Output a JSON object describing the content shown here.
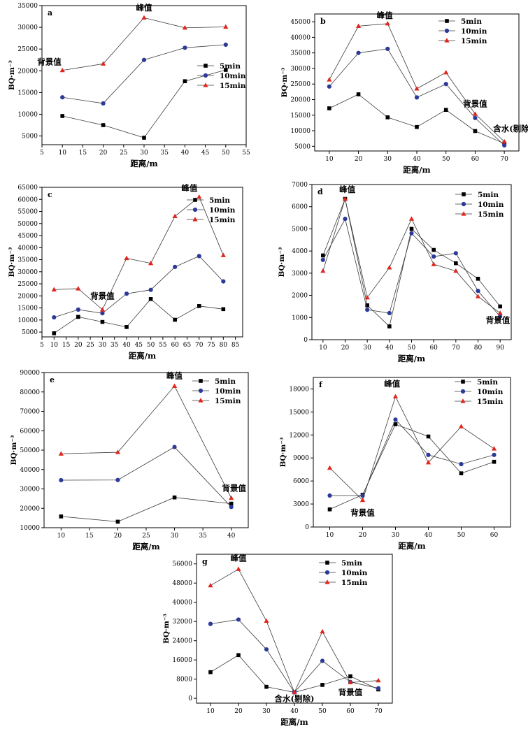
{
  "figure": {
    "charts": [
      {
        "panel_label": "a",
        "type": "line",
        "ylabel": "BQ·m⁻³",
        "xlabel": "距离/m",
        "x": [
          10,
          20,
          30,
          40,
          50
        ],
        "xlim": [
          5,
          55
        ],
        "xticks": [
          5,
          10,
          15,
          20,
          25,
          30,
          35,
          40,
          45,
          50,
          55
        ],
        "ylim": [
          3000,
          35000
        ],
        "yticks": [
          5000,
          10000,
          15000,
          20000,
          25000,
          30000,
          35000
        ],
        "legend_position": "right-middle",
        "series": [
          {
            "name": "5min",
            "marker": "square",
            "color": "#000000",
            "values": [
              9600,
              7500,
              4600,
              17600,
              20200
            ]
          },
          {
            "name": "10min",
            "marker": "circle",
            "color": "#2b3a98",
            "values": [
              13900,
              12500,
              22500,
              25300,
              26000
            ]
          },
          {
            "name": "15min",
            "marker": "triangle",
            "color": "#e0261d",
            "values": [
              20100,
              21600,
              32200,
              29900,
              30100
            ]
          }
        ],
        "annotations": [
          {
            "text": "峰值",
            "x": 30,
            "y": 33900
          },
          {
            "text": "背景值",
            "x": 6.8,
            "y": 21400
          }
        ]
      },
      {
        "panel_label": "b",
        "type": "line",
        "ylabel": "BQ·m⁻³",
        "xlabel": "距离/m",
        "x": [
          10,
          20,
          30,
          40,
          50,
          60,
          70
        ],
        "xlim": [
          5,
          75
        ],
        "xticks": [
          10,
          20,
          30,
          40,
          50,
          60,
          70
        ],
        "ylim": [
          3500,
          47500
        ],
        "yticks": [
          5000,
          10000,
          15000,
          20000,
          25000,
          30000,
          35000,
          40000,
          45000
        ],
        "legend_position": "top-right",
        "series": [
          {
            "name": "5min",
            "marker": "square",
            "color": "#000000",
            "values": [
              17200,
              21700,
              14300,
              11200,
              16700,
              9900,
              5900
            ]
          },
          {
            "name": "10min",
            "marker": "circle",
            "color": "#2b3a98",
            "values": [
              24200,
              35000,
              36300,
              20700,
              25000,
              14100,
              5300
            ]
          },
          {
            "name": "15min",
            "marker": "triangle",
            "color": "#e0261d",
            "values": [
              26400,
              43600,
              44400,
              23500,
              28700,
              15400,
              6500
            ]
          }
        ],
        "annotations": [
          {
            "text": "峰值",
            "x": 29,
            "y": 46100
          },
          {
            "text": "背景值",
            "x": 60,
            "y": 17800
          },
          {
            "text": "含水(剔除)",
            "x": 73,
            "y": 9800
          }
        ]
      },
      {
        "panel_label": "c",
        "type": "line",
        "ylabel": "BQ·m⁻³",
        "xlabel": "距离/m",
        "x": [
          10,
          20,
          30,
          40,
          50,
          60,
          70,
          80
        ],
        "xlim": [
          5,
          88
        ],
        "xticks": [
          5,
          10,
          15,
          20,
          25,
          30,
          35,
          40,
          45,
          50,
          55,
          60,
          65,
          70,
          75,
          80,
          85
        ],
        "ylim": [
          3000,
          65000
        ],
        "yticks": [
          5000,
          10000,
          15000,
          20000,
          25000,
          30000,
          35000,
          40000,
          45000,
          50000,
          55000,
          60000,
          65000
        ],
        "legend_position": "top-right",
        "series": [
          {
            "name": "5min",
            "marker": "square",
            "color": "#000000",
            "values": [
              4500,
              11300,
              9200,
              7100,
              18700,
              10100,
              15800,
              14500
            ]
          },
          {
            "name": "10min",
            "marker": "circle",
            "color": "#2b3a98",
            "values": [
              11100,
              14300,
              12800,
              20900,
              22500,
              32000,
              36500,
              26000
            ]
          },
          {
            "name": "15min",
            "marker": "triangle",
            "color": "#e0261d",
            "values": [
              22600,
              23000,
              14300,
              35600,
              33500,
              53000,
              61000,
              36800
            ]
          }
        ],
        "annotations": [
          {
            "text": "峰值",
            "x": 66,
            "y": 63500
          },
          {
            "text": "背景值",
            "x": 30,
            "y": 18800
          }
        ]
      },
      {
        "panel_label": "d",
        "type": "line",
        "ylabel": "BQ·m⁻³",
        "xlabel": "距离/m",
        "x": [
          10,
          20,
          30,
          40,
          50,
          60,
          70,
          80,
          90
        ],
        "xlim": [
          5,
          95
        ],
        "xticks": [
          10,
          20,
          30,
          40,
          50,
          60,
          70,
          80,
          90
        ],
        "ylim": [
          0,
          7000
        ],
        "yticks": [
          0,
          1000,
          2000,
          3000,
          4000,
          5000,
          6000,
          7000
        ],
        "legend_position": "top-right",
        "series": [
          {
            "name": "5min",
            "marker": "square",
            "color": "#000000",
            "values": [
              3800,
              6350,
              1550,
              600,
              5000,
              4050,
              3450,
              2750,
              1500
            ]
          },
          {
            "name": "10min",
            "marker": "circle",
            "color": "#2b3a98",
            "values": [
              3600,
              5450,
              1350,
              1200,
              4800,
              3750,
              3900,
              2200,
              1050
            ]
          },
          {
            "name": "15min",
            "marker": "triangle",
            "color": "#e0261d",
            "values": [
              3100,
              6350,
              1900,
              3250,
              5450,
              3400,
              3100,
              1950,
              1200
            ]
          }
        ],
        "annotations": [
          {
            "text": "峰值",
            "x": 21,
            "y": 6650
          },
          {
            "text": "背景值",
            "x": 89,
            "y": 750
          }
        ]
      },
      {
        "panel_label": "e",
        "type": "line",
        "ylabel": "BQ·m⁻³",
        "xlabel": "距离/m",
        "x": [
          10,
          20,
          30,
          40
        ],
        "xlim": [
          7,
          43
        ],
        "xticks": [
          10,
          15,
          20,
          25,
          30,
          35,
          40
        ],
        "ylim": [
          10000,
          90000
        ],
        "yticks": [
          10000,
          20000,
          30000,
          40000,
          50000,
          60000,
          70000,
          80000,
          90000
        ],
        "legend_position": "top-right",
        "series": [
          {
            "name": "5min",
            "marker": "square",
            "color": "#000000",
            "values": [
              15800,
              13100,
              25600,
              22400
            ]
          },
          {
            "name": "10min",
            "marker": "circle",
            "color": "#2b3a98",
            "values": [
              34500,
              34600,
              51600,
              20700
            ]
          },
          {
            "name": "15min",
            "marker": "triangle",
            "color": "#e0261d",
            "values": [
              48100,
              48900,
              83000,
              25300
            ]
          }
        ],
        "annotations": [
          {
            "text": "峰值",
            "x": 30,
            "y": 87000
          },
          {
            "text": "背景值",
            "x": 40.5,
            "y": 29000
          }
        ]
      },
      {
        "panel_label": "f",
        "type": "line",
        "ylabel": "BQ·m⁻³",
        "xlabel": "距离/m",
        "x": [
          10,
          20,
          30,
          40,
          50,
          60
        ],
        "xlim": [
          5,
          65
        ],
        "xticks": [
          10,
          20,
          30,
          40,
          50,
          60
        ],
        "ylim": [
          0,
          19500
        ],
        "yticks": [
          0,
          3000,
          6000,
          9000,
          12000,
          15000,
          18000
        ],
        "legend_position": "top-right",
        "series": [
          {
            "name": "5min",
            "marker": "square",
            "color": "#000000",
            "values": [
              2300,
              4200,
              13400,
              11800,
              7000,
              8500
            ]
          },
          {
            "name": "10min",
            "marker": "circle",
            "color": "#2b3a98",
            "values": [
              4100,
              4100,
              14000,
              9400,
              8200,
              9400
            ]
          },
          {
            "name": "15min",
            "marker": "triangle",
            "color": "#e0261d",
            "values": [
              7700,
              3500,
              17000,
              8400,
              13100,
              10200
            ]
          }
        ],
        "annotations": [
          {
            "text": "峰值",
            "x": 29,
            "y": 18300
          },
          {
            "text": "背景值",
            "x": 20,
            "y": 1500
          }
        ]
      },
      {
        "panel_label": "g",
        "type": "line",
        "ylabel": "BQ·m⁻³",
        "xlabel": "距离/m",
        "x": [
          10,
          20,
          30,
          40,
          50,
          60,
          70
        ],
        "xlim": [
          5,
          75
        ],
        "xticks": [
          10,
          20,
          30,
          40,
          50,
          60,
          70
        ],
        "ylim": [
          -2000,
          60000
        ],
        "yticks": [
          0,
          8000,
          16000,
          24000,
          32000,
          40000,
          48000,
          56000
        ],
        "legend_position": "top-right",
        "series": [
          {
            "name": "5min",
            "marker": "square",
            "color": "#000000",
            "values": [
              10900,
              18000,
              4800,
              2500,
              5600,
              9200,
              3700
            ]
          },
          {
            "name": "10min",
            "marker": "circle",
            "color": "#2b3a98",
            "values": [
              31000,
              32800,
              20400,
              2500,
              15600,
              6800,
              4200
            ]
          },
          {
            "name": "15min",
            "marker": "triangle",
            "color": "#e0261d",
            "values": [
              47000,
              53800,
              32200,
              2500,
              27800,
              6600,
              7400
            ]
          }
        ],
        "annotations": [
          {
            "text": "峰值",
            "x": 20,
            "y": 57300
          },
          {
            "text": "含水(剔除)",
            "x": 40,
            "y": -1300
          },
          {
            "text": "背景值",
            "x": 60,
            "y": 1400
          }
        ]
      }
    ]
  }
}
